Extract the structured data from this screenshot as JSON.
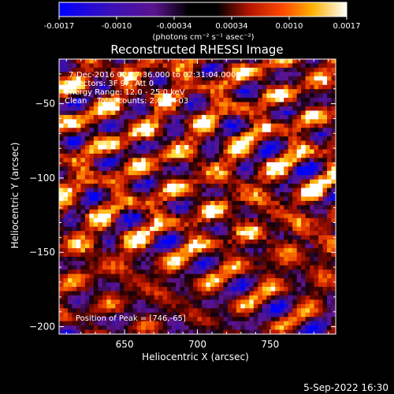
{
  "colorbar": {
    "ticks": [
      "-0.0017",
      "-0.0010",
      "-0.00034",
      "0.00034",
      "0.0010",
      "0.0017"
    ],
    "units": "(photons cm⁻² s⁻¹ asec⁻²)"
  },
  "chart_data": {
    "type": "heatmap",
    "title": "Reconstructed RHESSI Image",
    "xlabel": "Heliocentric X (arcsec)",
    "ylabel": "Heliocentric Y (arcsec)",
    "xlim": [
      605,
      795
    ],
    "ylim": [
      -205,
      -20
    ],
    "xticks": [
      650,
      700,
      750
    ],
    "yticks": [
      -50,
      -100,
      -150,
      -200
    ],
    "zlim": [
      -0.0017,
      0.0017
    ],
    "info_lines": [
      "7-Dec-2016 02:27:36.000 to 02:31:04.000",
      "Detectors: 3F 9F, Att 0",
      "Energy Range: 12.0 - 25.0 keV",
      "Clean    Total counts: 2.07E+03"
    ],
    "peak_label": "Position of Peak = [746,-65]",
    "peak": [
      746,
      -65
    ],
    "colormap": [
      "#0000ff",
      "#3010a0",
      "#6a1a9a",
      "#000000",
      "#7a0a00",
      "#d01e00",
      "#ff5a00",
      "#ffae00",
      "#ffff90",
      "#ffffff"
    ]
  },
  "footer": {
    "timestamp": "5-Sep-2022 16:30"
  }
}
